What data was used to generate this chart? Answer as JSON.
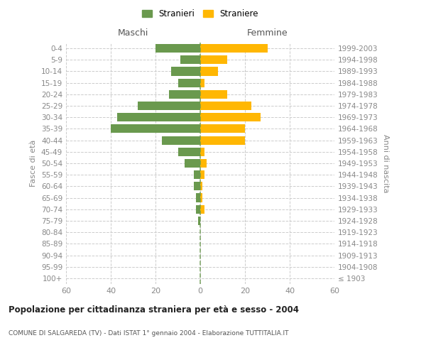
{
  "age_groups": [
    "100+",
    "95-99",
    "90-94",
    "85-89",
    "80-84",
    "75-79",
    "70-74",
    "65-69",
    "60-64",
    "55-59",
    "50-54",
    "45-49",
    "40-44",
    "35-39",
    "30-34",
    "25-29",
    "20-24",
    "15-19",
    "10-14",
    "5-9",
    "0-4"
  ],
  "birth_years": [
    "≤ 1903",
    "1904-1908",
    "1909-1913",
    "1914-1918",
    "1919-1923",
    "1924-1928",
    "1929-1933",
    "1934-1938",
    "1939-1943",
    "1944-1948",
    "1949-1953",
    "1954-1958",
    "1959-1963",
    "1964-1968",
    "1969-1973",
    "1974-1978",
    "1979-1983",
    "1984-1988",
    "1989-1993",
    "1994-1998",
    "1999-2003"
  ],
  "maschi": [
    0,
    0,
    0,
    0,
    0,
    1,
    2,
    2,
    3,
    3,
    7,
    10,
    17,
    40,
    37,
    28,
    14,
    10,
    13,
    9,
    20
  ],
  "femmine": [
    0,
    0,
    0,
    0,
    0,
    0,
    2,
    1,
    1,
    2,
    3,
    2,
    20,
    20,
    27,
    23,
    12,
    2,
    8,
    12,
    30
  ],
  "maschi_color": "#6a994e",
  "femmine_color": "#ffb703",
  "center_line_color": "#888888",
  "xlim": [
    -60,
    60
  ],
  "title": "Popolazione per cittadinanza straniera per età e sesso - 2004",
  "subtitle": "COMUNE DI SALGAREDA (TV) - Dati ISTAT 1° gennaio 2004 - Elaborazione TUTTITALIA.IT",
  "ylabel_left": "Fasce di età",
  "ylabel_right": "Anni di nascita",
  "xlabel_maschi": "Maschi",
  "xlabel_femmine": "Femmine",
  "legend_stranieri": "Stranieri",
  "legend_straniere": "Straniere",
  "bg_color": "#ffffff",
  "grid_color": "#cccccc",
  "tick_color": "#888888",
  "bar_height": 0.75
}
